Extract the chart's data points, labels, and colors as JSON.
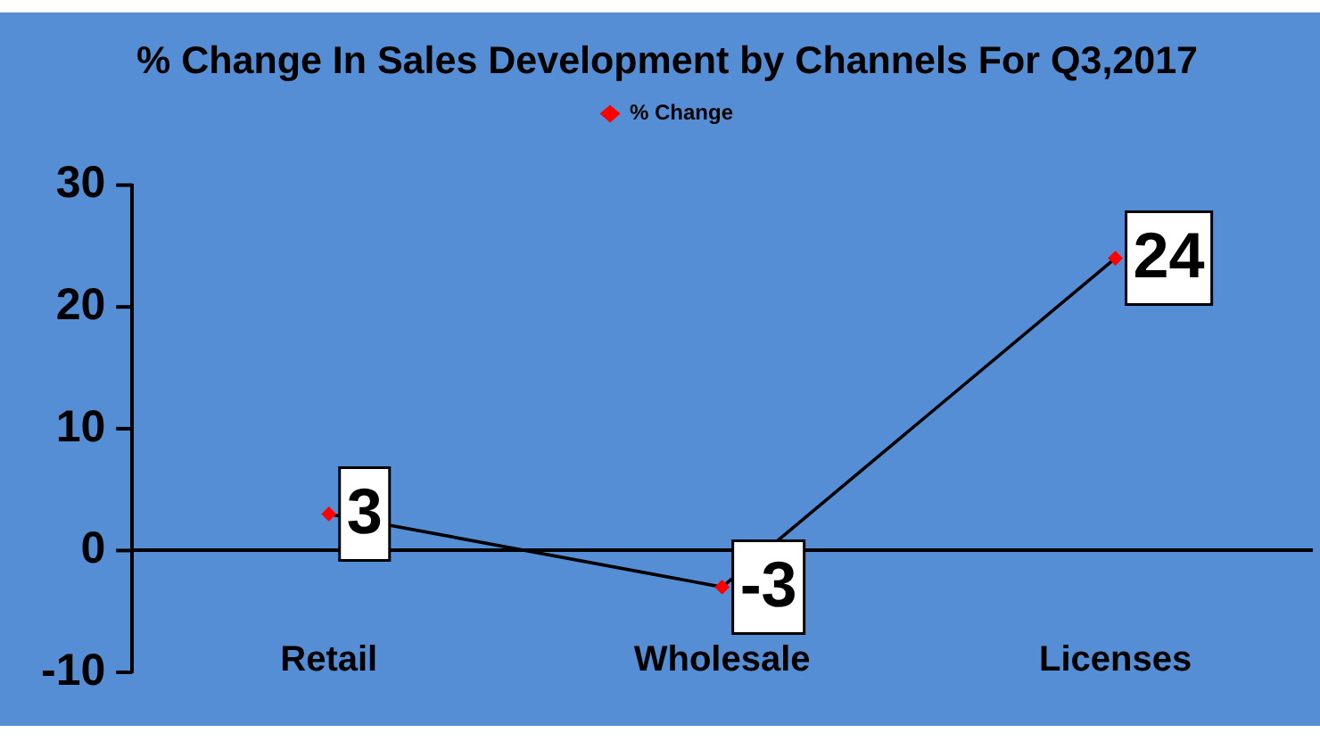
{
  "chart_data": {
    "type": "line",
    "title": "% Change In Sales Development by Channels For Q3,2017",
    "categories": [
      "Retail",
      "Wholesale",
      "Licenses"
    ],
    "series": [
      {
        "name": "% Change",
        "color": "#000000",
        "colors": [
          "#ff0000",
          "#ff0000",
          "#ff0000"
        ],
        "values": [
          3,
          -3,
          24
        ]
      }
    ],
    "ylim": [
      -10,
      30
    ],
    "yticks": [
      -10,
      0,
      10,
      20,
      30
    ],
    "grid": false,
    "legend": "top",
    "marker": "diamond",
    "line_style": "solid",
    "data_labels": true
  }
}
